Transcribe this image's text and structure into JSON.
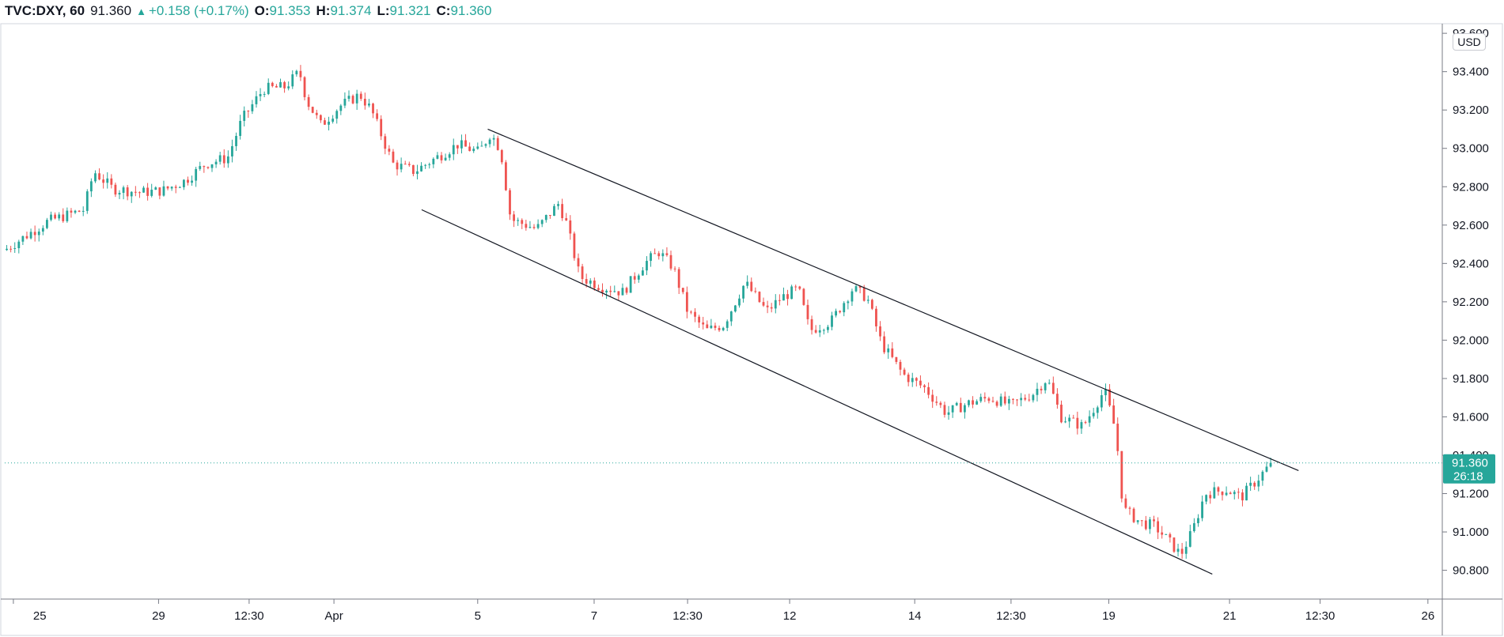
{
  "header": {
    "symbol": "TVC:DXY, 60",
    "last": "91.360",
    "change": "+0.158 (+0.17%)",
    "o_label": "O:",
    "o_value": "91.353",
    "h_label": "H:",
    "h_value": "91.374",
    "l_label": "L:",
    "l_value": "91.321",
    "c_label": "C:",
    "c_value": "91.360"
  },
  "currency_button": "USD",
  "current_price": {
    "value": "91.360",
    "countdown": "26:18"
  },
  "colors": {
    "up": "#26a69a",
    "down": "#ef5350",
    "trendline": "#131722",
    "axis": "#b2b5be"
  },
  "chart_data": {
    "type": "candlestick",
    "title": "TVC:DXY, 60",
    "ylabel": "USD",
    "ylim": [
      90.65,
      93.65
    ],
    "y_ticks": [
      "93.600",
      "93.400",
      "93.200",
      "93.000",
      "92.800",
      "92.600",
      "92.400",
      "92.200",
      "92.000",
      "91.800",
      "91.600",
      "91.400",
      "91.200",
      "91.000",
      "90.800"
    ],
    "x_ticks": [
      {
        "label": "25",
        "t": 0.006
      },
      {
        "label": "29",
        "t": 0.107
      },
      {
        "label": "12:30",
        "t": 0.17
      },
      {
        "label": "Apr",
        "t": 0.229
      },
      {
        "label": "5",
        "t": 0.329
      },
      {
        "label": "7",
        "t": 0.41
      },
      {
        "label": "12:30",
        "t": 0.475
      },
      {
        "label": "12",
        "t": 0.546
      },
      {
        "label": "14",
        "t": 0.633
      },
      {
        "label": "12:30",
        "t": 0.7
      },
      {
        "label": "19",
        "t": 0.768
      },
      {
        "label": "21",
        "t": 0.852
      },
      {
        "label": "12:30",
        "t": 0.915
      },
      {
        "label": "26",
        "t": 0.99
      }
    ],
    "candles_end_t": 0.883,
    "price_path": [
      [
        0.0,
        92.47
      ],
      [
        0.03,
        92.62
      ],
      [
        0.055,
        92.68
      ],
      [
        0.062,
        92.88
      ],
      [
        0.075,
        92.79
      ],
      [
        0.095,
        92.77
      ],
      [
        0.11,
        92.78
      ],
      [
        0.125,
        92.83
      ],
      [
        0.14,
        92.92
      ],
      [
        0.155,
        92.95
      ],
      [
        0.165,
        93.15
      ],
      [
        0.18,
        93.31
      ],
      [
        0.195,
        93.32
      ],
      [
        0.205,
        93.4
      ],
      [
        0.21,
        93.25
      ],
      [
        0.22,
        93.12
      ],
      [
        0.233,
        93.22
      ],
      [
        0.247,
        93.28
      ],
      [
        0.255,
        93.2
      ],
      [
        0.27,
        92.92
      ],
      [
        0.285,
        92.88
      ],
      [
        0.3,
        92.95
      ],
      [
        0.315,
        93.02
      ],
      [
        0.33,
        92.98
      ],
      [
        0.338,
        93.08
      ],
      [
        0.345,
        92.99
      ],
      [
        0.352,
        92.63
      ],
      [
        0.37,
        92.58
      ],
      [
        0.385,
        92.71
      ],
      [
        0.39,
        92.63
      ],
      [
        0.4,
        92.33
      ],
      [
        0.415,
        92.28
      ],
      [
        0.43,
        92.25
      ],
      [
        0.445,
        92.4
      ],
      [
        0.455,
        92.46
      ],
      [
        0.465,
        92.38
      ],
      [
        0.475,
        92.15
      ],
      [
        0.488,
        92.05
      ],
      [
        0.5,
        92.08
      ],
      [
        0.515,
        92.3
      ],
      [
        0.53,
        92.15
      ],
      [
        0.54,
        92.22
      ],
      [
        0.552,
        92.27
      ],
      [
        0.56,
        92.05
      ],
      [
        0.575,
        92.1
      ],
      [
        0.59,
        92.27
      ],
      [
        0.6,
        92.22
      ],
      [
        0.61,
        91.98
      ],
      [
        0.625,
        91.82
      ],
      [
        0.64,
        91.75
      ],
      [
        0.655,
        91.62
      ],
      [
        0.67,
        91.67
      ],
      [
        0.685,
        91.7
      ],
      [
        0.7,
        91.66
      ],
      [
        0.715,
        91.72
      ],
      [
        0.725,
        91.8
      ],
      [
        0.735,
        91.6
      ],
      [
        0.75,
        91.55
      ],
      [
        0.758,
        91.65
      ],
      [
        0.765,
        91.74
      ],
      [
        0.773,
        91.52
      ],
      [
        0.778,
        91.12
      ],
      [
        0.79,
        91.05
      ],
      [
        0.8,
        91.03
      ],
      [
        0.81,
        90.95
      ],
      [
        0.818,
        90.88
      ],
      [
        0.826,
        91.0
      ],
      [
        0.835,
        91.2
      ],
      [
        0.85,
        91.22
      ],
      [
        0.86,
        91.18
      ],
      [
        0.872,
        91.28
      ],
      [
        0.88,
        91.35
      ],
      [
        0.883,
        91.36
      ]
    ],
    "trendlines": [
      {
        "name": "upper",
        "t1": 0.336,
        "p1": 93.1,
        "t2": 0.9,
        "p2": 91.32
      },
      {
        "name": "lower",
        "t1": 0.29,
        "p1": 92.68,
        "t2": 0.84,
        "p2": 90.78
      }
    ],
    "last_price": 91.36
  }
}
